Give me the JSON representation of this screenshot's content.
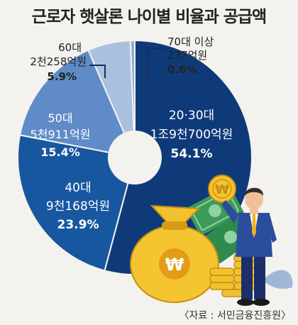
{
  "title": "근로자 햇살론 나이별 비율과 공급액",
  "source": "〈자료 : 서민금융진흥원〉",
  "colors": {
    "s20_30": "#0f3a7a",
    "s40": "#17579f",
    "s50": "#5f8bc8",
    "s60": "#a9c1df",
    "s70": "#8eaed4",
    "background": "#f4f2ee"
  },
  "chart_data": {
    "type": "pie",
    "title": "근로자 햇살론 나이별 비율과 공급액",
    "slices": [
      {
        "label": "20·30대",
        "amount": "1조9천700억원",
        "percent": 54.1
      },
      {
        "label": "40대",
        "amount": "9천168억원",
        "percent": 23.9
      },
      {
        "label": "50대",
        "amount": "5천911억원",
        "percent": 15.4
      },
      {
        "label": "60대",
        "amount": "2천258억원",
        "percent": 5.9
      },
      {
        "label": "70대 이상",
        "amount": "237억원",
        "percent": 0.6
      }
    ]
  },
  "labels": {
    "s20_30": {
      "age": "20·30대",
      "amount": "1조9천700억원",
      "pct": "54.1%"
    },
    "s40": {
      "age": "40대",
      "amount": "9천168억원",
      "pct": "23.9%"
    },
    "s50": {
      "age": "50대",
      "amount": "5천911억원",
      "pct": "15.4%"
    },
    "s60": {
      "age": "60대",
      "amount": "2천258억원",
      "pct": "5.9%"
    },
    "s70": {
      "age": "70대 이상",
      "amount": "237억원",
      "pct": "0.6%"
    }
  },
  "icons": [
    "money-bag-icon",
    "won-coin-icon",
    "banknote-icon",
    "coin-stack-icon",
    "businessman-icon",
    "leaf-icon"
  ]
}
